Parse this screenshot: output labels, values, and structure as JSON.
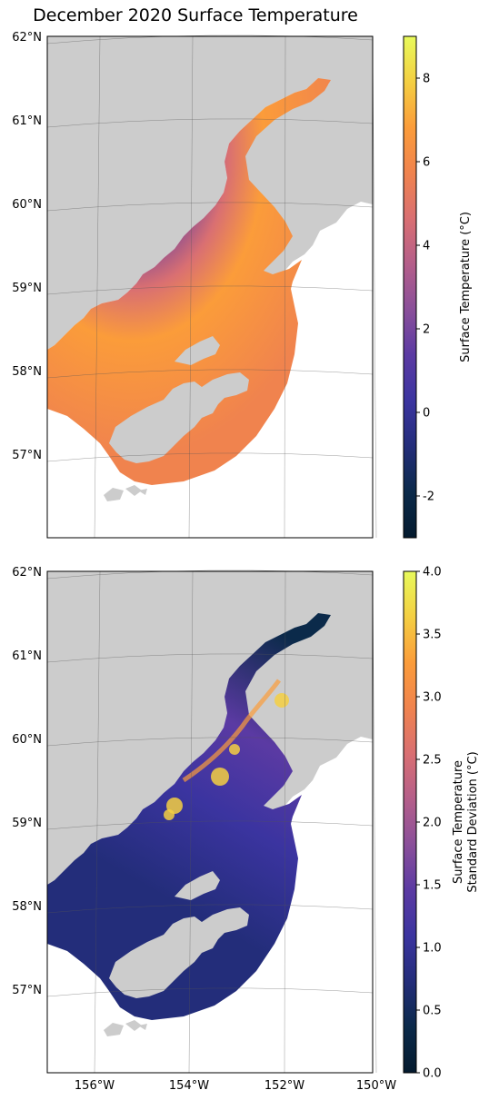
{
  "figure": {
    "title": "December 2020 Surface Temperature"
  },
  "colors": {
    "land": "#cccccc",
    "water": "#ffffff",
    "grid": "#555555",
    "cmap": [
      "#041a2e",
      "#0b2a4a",
      "#232d7a",
      "#3b34a0",
      "#5b3aa3",
      "#8a4f9a",
      "#b45e8a",
      "#d96f72",
      "#f0834e",
      "#fb9c3a",
      "#f4cf42",
      "#e8fa5b"
    ]
  },
  "map_axes": {
    "lat_labels": [
      "62°N",
      "61°N",
      "60°N",
      "59°N",
      "58°N",
      "57°N"
    ],
    "lon_labels": [
      "156°W",
      "154°W",
      "152°W",
      "150°W"
    ]
  },
  "panels": [
    {
      "name": "mean-temperature",
      "colorbar": {
        "label_lines": [
          "Surface Temperature (°C)"
        ],
        "range": [
          -3,
          9
        ],
        "ticks": [
          "-2",
          "0",
          "2",
          "4",
          "6",
          "8"
        ],
        "tick_values": [
          -2,
          0,
          2,
          4,
          6,
          8
        ]
      }
    },
    {
      "name": "temperature-std",
      "colorbar": {
        "label_lines": [
          "Surface Temperature",
          "Standard Deviation (°C)"
        ],
        "range": [
          0,
          4
        ],
        "ticks": [
          "0.0",
          "0.5",
          "1.0",
          "1.5",
          "2.0",
          "2.5",
          "3.0",
          "3.5",
          "4.0"
        ],
        "tick_values": [
          0,
          0.5,
          1,
          1.5,
          2,
          2.5,
          3,
          3.5,
          4
        ]
      }
    }
  ]
}
